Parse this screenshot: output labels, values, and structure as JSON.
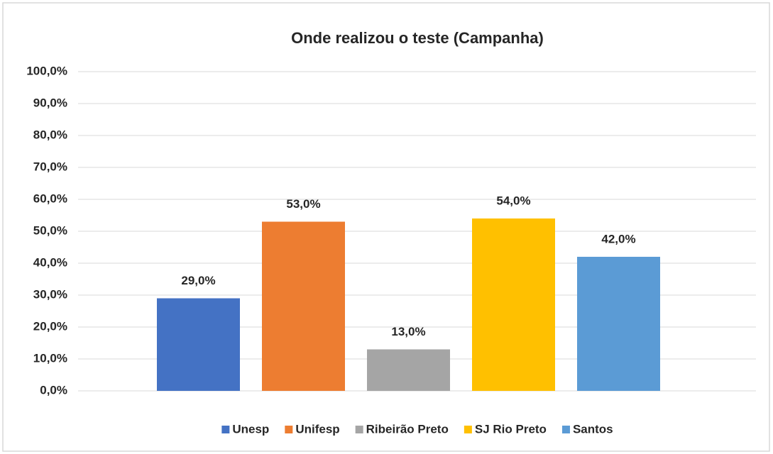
{
  "chart_data": {
    "type": "bar",
    "title": "Onde realizou o teste (Campanha)",
    "categories": [
      null
    ],
    "series": [
      {
        "name": "Unesp",
        "color": "#4472c4",
        "values": [
          29
        ],
        "value_labels": [
          "29,0%"
        ]
      },
      {
        "name": "Unifesp",
        "color": "#ed7d31",
        "values": [
          53
        ],
        "value_labels": [
          "53,0%"
        ]
      },
      {
        "name": "Ribeirão Preto",
        "color": "#a5a5a5",
        "values": [
          13
        ],
        "value_labels": [
          "13,0%"
        ]
      },
      {
        "name": "SJ Rio Preto",
        "color": "#ffc000",
        "values": [
          54
        ],
        "value_labels": [
          "54,0%"
        ]
      },
      {
        "name": "Santos",
        "color": "#5b9bd5",
        "values": [
          42
        ],
        "value_labels": [
          "42,0%"
        ]
      }
    ],
    "ylim": [
      0,
      100
    ],
    "yticks": [
      {
        "value": 0,
        "label": "0,0%"
      },
      {
        "value": 10,
        "label": "10,0%"
      },
      {
        "value": 20,
        "label": "20,0%"
      },
      {
        "value": 30,
        "label": "30,0%"
      },
      {
        "value": 40,
        "label": "40,0%"
      },
      {
        "value": 50,
        "label": "50,0%"
      },
      {
        "value": 60,
        "label": "60,0%"
      },
      {
        "value": 70,
        "label": "70,0%"
      },
      {
        "value": 80,
        "label": "80,0%"
      },
      {
        "value": 90,
        "label": "90,0%"
      },
      {
        "value": 100,
        "label": "100,0%"
      }
    ],
    "grid": true,
    "legend": "bottom"
  }
}
